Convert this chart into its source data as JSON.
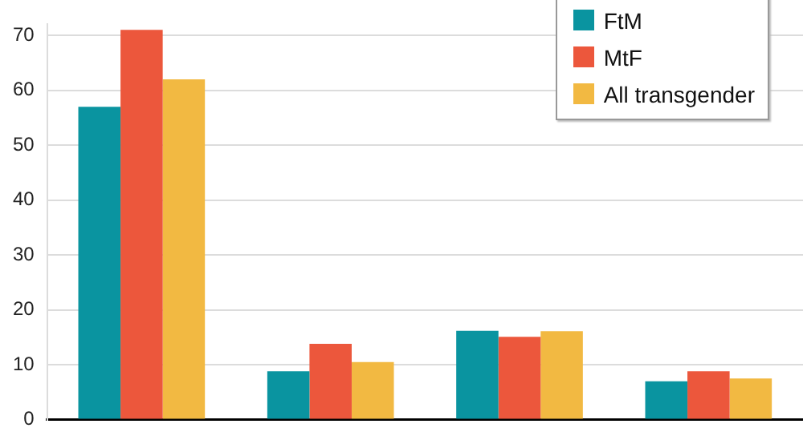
{
  "chart_data": {
    "type": "bar",
    "categories": [
      null,
      null,
      null,
      null
    ],
    "series": [
      {
        "name": "FtM",
        "color": "#0a94a0",
        "values": [
          57,
          8.8,
          16.2,
          7
        ]
      },
      {
        "name": "MtF",
        "color": "#ec573c",
        "values": [
          71,
          13.8,
          15.1,
          8.8
        ]
      },
      {
        "name": "All transgender",
        "color": "#f2b942",
        "values": [
          62,
          10.5,
          16.1,
          7.5
        ]
      }
    ],
    "ylim": [
      0,
      72
    ],
    "yticks": [
      0,
      10,
      20,
      30,
      40,
      50,
      60,
      70
    ],
    "grid": "y",
    "legend": "top right",
    "tick_labels": "y"
  }
}
